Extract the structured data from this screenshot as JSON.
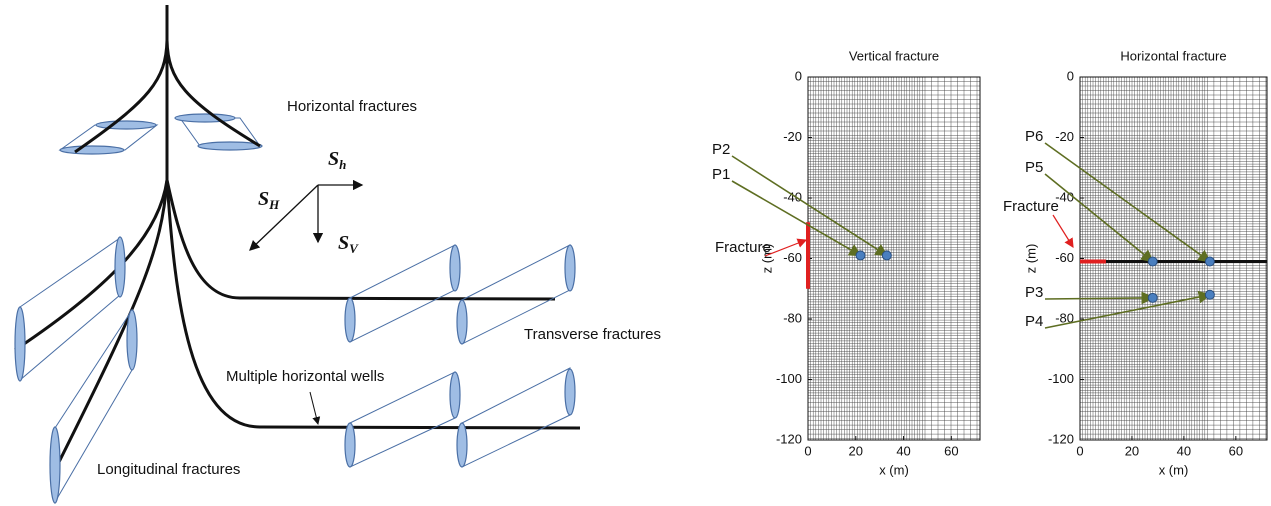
{
  "diagram": {
    "labels": {
      "horizontal_fractures": "Horizontal fractures",
      "transverse_fractures": "Transverse fractures",
      "wells": "Multiple horizontal wells",
      "longitudinal_fractures": "Longitudinal fractures"
    },
    "stresses": [
      {
        "symbol": "S",
        "subscript": "h"
      },
      {
        "symbol": "S",
        "subscript": "H"
      },
      {
        "symbol": "S",
        "subscript": "V"
      }
    ]
  },
  "chart_data": [
    {
      "type": "scatter",
      "title": "Vertical fracture",
      "x_label": "x (m)",
      "y_label": "z (m)",
      "xlim": [
        0,
        72
      ],
      "xticks": [
        0,
        20,
        40,
        60
      ],
      "ylim": [
        -120,
        0
      ],
      "yticks": [
        0,
        -20,
        -40,
        -60,
        -80,
        -100,
        -120
      ],
      "points": [
        {
          "label": "P2",
          "x": 33,
          "y": -59
        },
        {
          "label": "P1",
          "x": 22,
          "y": -59
        }
      ],
      "fracture": {
        "label": "Fracture",
        "x": [
          0,
          0
        ],
        "y": [
          -48,
          -70
        ]
      }
    },
    {
      "type": "scatter",
      "title": "Horizontal fracture",
      "x_label": "x (m)",
      "y_label": "z (m)",
      "xlim": [
        0,
        72
      ],
      "xticks": [
        0,
        20,
        40,
        60
      ],
      "ylim": [
        -120,
        0
      ],
      "yticks": [
        0,
        -20,
        -40,
        -60,
        -80,
        -100,
        -120
      ],
      "points": [
        {
          "label": "P6",
          "x": 50,
          "y": -61
        },
        {
          "label": "P5",
          "x": 28,
          "y": -61
        },
        {
          "label": "P3",
          "x": 28,
          "y": -73
        },
        {
          "label": "P4",
          "x": 50,
          "y": -72
        }
      ],
      "fracture": {
        "label": "Fracture",
        "x": [
          0,
          10
        ],
        "y": [
          -61,
          -61
        ]
      },
      "well": {
        "x": [
          10,
          72
        ],
        "y": [
          -61,
          -61
        ]
      }
    }
  ]
}
